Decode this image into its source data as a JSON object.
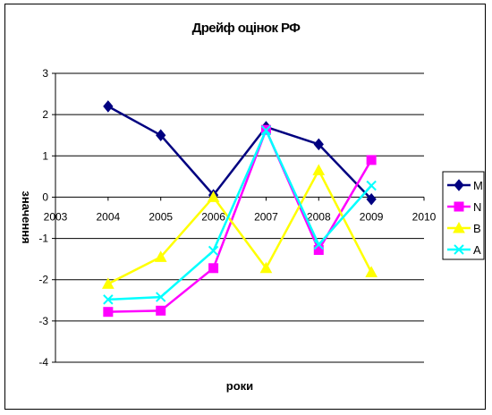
{
  "chart_data": {
    "type": "line",
    "title": "Дрейф оцінок РФ",
    "xlabel": "роки",
    "ylabel": "значення",
    "xlim": [
      2003,
      2010
    ],
    "ylim": [
      -4,
      3
    ],
    "x_ticks": [
      2003,
      2004,
      2005,
      2006,
      2007,
      2008,
      2009,
      2010
    ],
    "y_ticks": [
      -4,
      -3,
      -2,
      -1,
      0,
      1,
      2,
      3
    ],
    "grid": "horizontal",
    "legend_position": "right",
    "series": [
      {
        "name": "M",
        "color": "#000080",
        "marker": "diamond",
        "x": [
          2004,
          2005,
          2006,
          2007,
          2008,
          2009
        ],
        "values": [
          2.2,
          1.5,
          0.05,
          1.7,
          1.28,
          -0.05
        ]
      },
      {
        "name": "N",
        "color": "#FF00FF",
        "marker": "square",
        "x": [
          2004,
          2005,
          2006,
          2007,
          2008,
          2009
        ],
        "values": [
          -2.78,
          -2.75,
          -1.72,
          1.63,
          -1.28,
          0.9
        ]
      },
      {
        "name": "B",
        "color": "#FFFF00",
        "marker": "triangle",
        "x": [
          2004,
          2005,
          2006,
          2007,
          2008,
          2009
        ],
        "values": [
          -2.1,
          -1.45,
          0.0,
          -1.72,
          0.65,
          -1.82
        ]
      },
      {
        "name": "A",
        "color": "#00FFFF",
        "marker": "x",
        "x": [
          2004,
          2005,
          2006,
          2007,
          2008,
          2009
        ],
        "values": [
          -2.48,
          -2.42,
          -1.3,
          1.62,
          -1.15,
          0.28
        ]
      }
    ]
  }
}
